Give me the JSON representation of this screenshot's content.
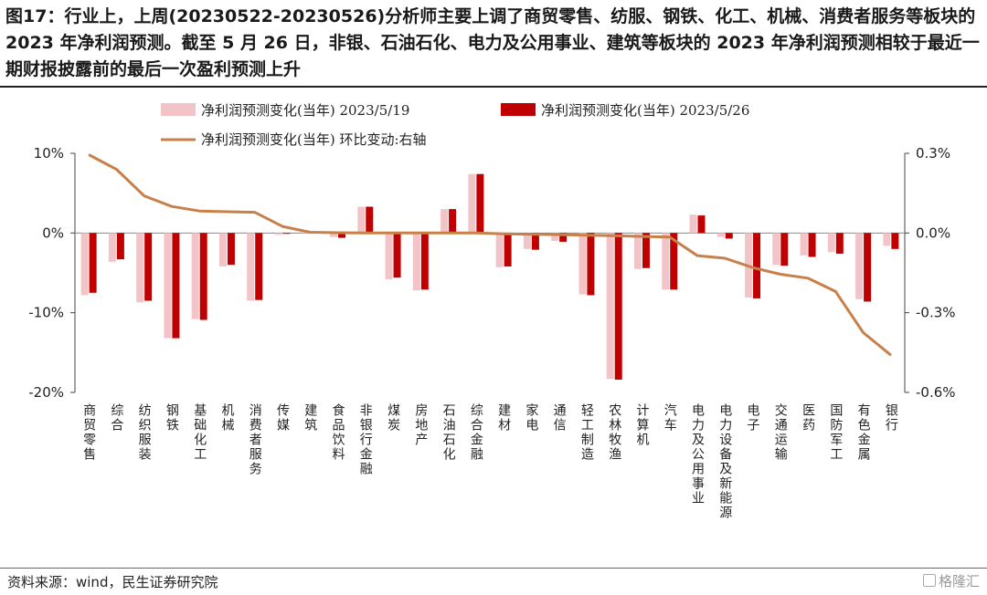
{
  "title": "图17：行业上，上周(20230522-20230526)分析师主要上调了商贸零售、纺服、钢铁、化工、机械、消费者服务等板块的 2023 年净利润预测。截至 5 月 26 日，非银、石油石化、电力及公用事业、建筑等板块的 2023 年净利润预测相较于最近一期财报披露前的最后一次盈利预测上升",
  "source": "资料来源：wind，民生证券研究院",
  "watermark": "格隆汇",
  "colors": {
    "series_prev": "#f2c4c8",
    "series_curr": "#c00000",
    "line": "#c8804a"
  },
  "chart_data": {
    "type": "bar",
    "categories": [
      "商贸零售",
      "综合",
      "纺织服装",
      "钢铁",
      "基础化工",
      "机械",
      "消费者服务",
      "传媒",
      "建筑",
      "食品饮料",
      "非银行金融",
      "煤炭",
      "房地产",
      "石油石化",
      "综合金融",
      "建材",
      "家电",
      "通信",
      "轻工制造",
      "农林牧渔",
      "计算机",
      "汽车",
      "电力及公用事业",
      "电力设备及新能源",
      "电子",
      "交通运输",
      "医药",
      "国防军工",
      "有色金属",
      "银行"
    ],
    "series": [
      {
        "name": "净利润预测变化(当年) 2023/5/19",
        "axis": "left",
        "values": [
          -7.8,
          -3.6,
          -8.7,
          -13.2,
          -10.8,
          -4.2,
          -8.5,
          -0.2,
          -0.1,
          -0.5,
          3.3,
          -5.8,
          -7.2,
          3.0,
          7.4,
          -4.3,
          -2.0,
          -1.0,
          -7.7,
          -18.3,
          -4.5,
          -7.1,
          2.3,
          -0.5,
          -8.1,
          -4.0,
          -2.8,
          -2.4,
          -8.3,
          -1.6
        ]
      },
      {
        "name": "净利润预测变化(当年) 2023/5/26",
        "axis": "left",
        "values": [
          -7.5,
          -3.3,
          -8.5,
          -13.2,
          -10.9,
          -4.0,
          -8.4,
          -0.1,
          0.0,
          -0.6,
          3.3,
          -5.6,
          -7.1,
          3.0,
          7.4,
          -4.2,
          -2.1,
          -1.1,
          -7.8,
          -18.4,
          -4.4,
          -7.1,
          2.2,
          -0.7,
          -8.2,
          -4.1,
          -3.0,
          -2.6,
          -8.6,
          -2.0
        ]
      },
      {
        "name": "净利润预测变化(当年) 环比变动:右轴",
        "axis": "right",
        "type": "line",
        "values": [
          0.295,
          0.24,
          0.14,
          0.1,
          0.083,
          0.08,
          0.078,
          0.025,
          0.003,
          0.001,
          0.0,
          0.0,
          0.0,
          0.0,
          0.0,
          -0.003,
          -0.005,
          -0.006,
          -0.008,
          -0.01,
          -0.013,
          -0.015,
          -0.085,
          -0.095,
          -0.13,
          -0.155,
          -0.17,
          -0.22,
          -0.375,
          -0.46
        ]
      }
    ],
    "left_axis": {
      "ticks": [
        "10%",
        "0%",
        "-10%",
        "-20%"
      ],
      "tick_values": [
        10,
        0,
        -10,
        -20
      ],
      "ylim": [
        -20,
        10
      ]
    },
    "right_axis": {
      "ticks": [
        "0.3%",
        "0.0%",
        "-0.3%",
        "-0.6%"
      ],
      "tick_values": [
        0.3,
        0,
        -0.3,
        -0.6
      ],
      "ylim": [
        -0.6,
        0.3
      ]
    },
    "grid": false,
    "legend_placement": "top"
  }
}
